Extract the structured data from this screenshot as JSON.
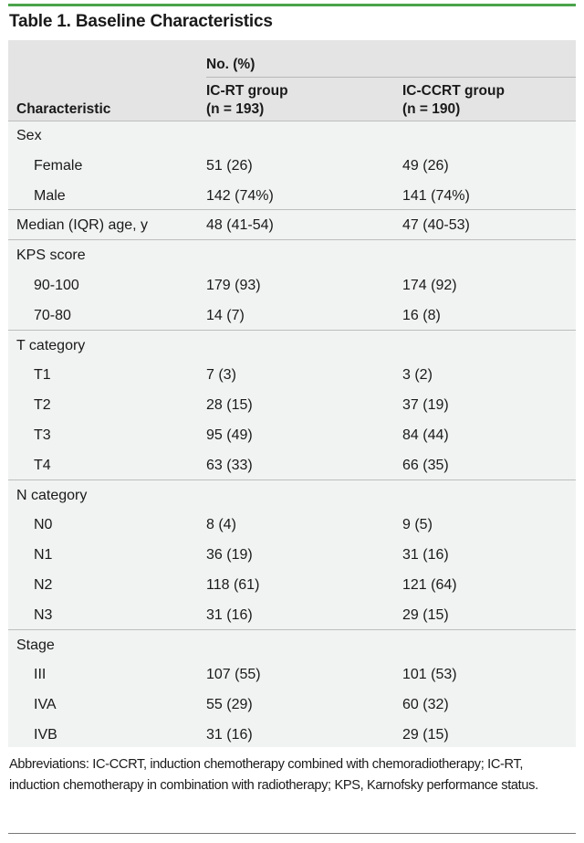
{
  "table": {
    "title": "Table 1. Baseline Characteristics",
    "header": {
      "no_pct": "No. (%)",
      "characteristic": "Characteristic",
      "ic_rt": "IC-RT group",
      "ic_rt_n": "(n = 193)",
      "ic_ccrt": "IC-CCRT group",
      "ic_ccrt_n": "(n = 190)"
    },
    "rows": [
      {
        "label": "Sex",
        "indent": false,
        "ic_rt": "",
        "ic_ccrt": "",
        "group_end": false
      },
      {
        "label": "Female",
        "indent": true,
        "ic_rt": "51 (26)",
        "ic_ccrt": "49 (26)",
        "group_end": false
      },
      {
        "label": "Male",
        "indent": true,
        "ic_rt": "142 (74%)",
        "ic_ccrt": "141 (74%)",
        "group_end": true
      },
      {
        "label": "Median (IQR) age, y",
        "indent": false,
        "ic_rt": "48 (41-54)",
        "ic_ccrt": "47 (40-53)",
        "group_end": true
      },
      {
        "label": "KPS score",
        "indent": false,
        "ic_rt": "",
        "ic_ccrt": "",
        "group_end": false
      },
      {
        "label": "90-100",
        "indent": true,
        "ic_rt": "179 (93)",
        "ic_ccrt": "174 (92)",
        "group_end": false
      },
      {
        "label": "70-80",
        "indent": true,
        "ic_rt": "14 (7)",
        "ic_ccrt": "16 (8)",
        "group_end": true
      },
      {
        "label": "T category",
        "indent": false,
        "ic_rt": "",
        "ic_ccrt": "",
        "group_end": false
      },
      {
        "label": "T1",
        "indent": true,
        "ic_rt": "7 (3)",
        "ic_ccrt": "3 (2)",
        "group_end": false
      },
      {
        "label": "T2",
        "indent": true,
        "ic_rt": "28 (15)",
        "ic_ccrt": "37 (19)",
        "group_end": false
      },
      {
        "label": "T3",
        "indent": true,
        "ic_rt": "95 (49)",
        "ic_ccrt": "84 (44)",
        "group_end": false
      },
      {
        "label": "T4",
        "indent": true,
        "ic_rt": "63 (33)",
        "ic_ccrt": "66 (35)",
        "group_end": true
      },
      {
        "label": "N category",
        "indent": false,
        "ic_rt": "",
        "ic_ccrt": "",
        "group_end": false
      },
      {
        "label": "N0",
        "indent": true,
        "ic_rt": "8 (4)",
        "ic_ccrt": "9 (5)",
        "group_end": false
      },
      {
        "label": "N1",
        "indent": true,
        "ic_rt": "36 (19)",
        "ic_ccrt": "31 (16)",
        "group_end": false
      },
      {
        "label": "N2",
        "indent": true,
        "ic_rt": "118 (61)",
        "ic_ccrt": "121 (64)",
        "group_end": false
      },
      {
        "label": "N3",
        "indent": true,
        "ic_rt": "31 (16)",
        "ic_ccrt": "29 (15)",
        "group_end": true
      },
      {
        "label": "Stage",
        "indent": false,
        "ic_rt": "",
        "ic_ccrt": "",
        "group_end": false
      },
      {
        "label": "III",
        "indent": true,
        "ic_rt": "107 (55)",
        "ic_ccrt": "101 (53)",
        "group_end": false
      },
      {
        "label": "IVA",
        "indent": true,
        "ic_rt": "55 (29)",
        "ic_ccrt": "60 (32)",
        "group_end": false
      },
      {
        "label": "IVB",
        "indent": true,
        "ic_rt": "31 (16)",
        "ic_ccrt": "29 (15)",
        "group_end": false
      }
    ],
    "footnote": "Abbreviations: IC-CCRT, induction chemotherapy combined with chemoradiotherapy; IC-RT, induction chemotherapy in combination with radiotherapy; KPS, Karnofsky performance status."
  },
  "colors": {
    "accent_rule": "#4aa34a",
    "header_bg": "#e4e4e4",
    "body_bg": "#f1f2f2"
  }
}
